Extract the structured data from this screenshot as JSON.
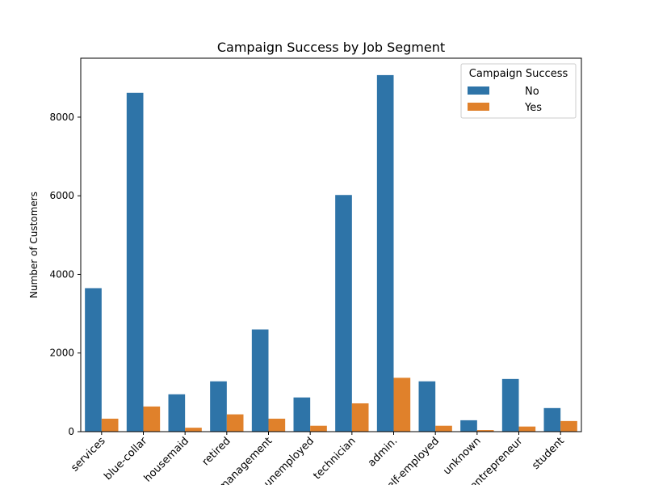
{
  "chart_data": {
    "type": "bar",
    "title": "Campaign Success by Job Segment",
    "xlabel": "",
    "ylabel": "Number of Customers",
    "ylim": [
      0,
      9500
    ],
    "yticks": [
      0,
      2000,
      4000,
      6000,
      8000
    ],
    "ytick_labels": [
      "0",
      "2000",
      "4000",
      "6000",
      "8000"
    ],
    "categories": [
      "services",
      "blue-collar",
      "housemaid",
      "retired",
      "management",
      "unemployed",
      "technician",
      "admin.",
      "self-employed",
      "unknown",
      "entrepreneur",
      "student"
    ],
    "grid": false,
    "legend": {
      "title": "Campaign Success",
      "placement": "top-right"
    },
    "series": [
      {
        "name": "No",
        "color": "#2e74a8",
        "values": [
          3650,
          8620,
          950,
          1280,
          2600,
          870,
          6020,
          9070,
          1280,
          290,
          1340,
          600
        ]
      },
      {
        "name": "Yes",
        "color": "#e0812b",
        "values": [
          330,
          640,
          100,
          440,
          330,
          150,
          720,
          1370,
          150,
          40,
          130,
          270
        ]
      }
    ]
  }
}
